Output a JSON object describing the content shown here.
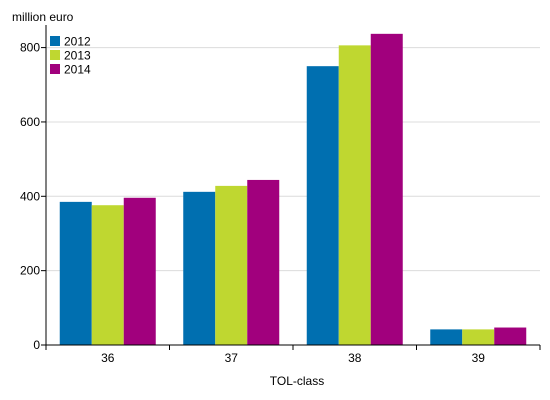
{
  "chart_data": {
    "type": "bar",
    "title": "",
    "ylabel": "million euro",
    "xlabel": "TOL-class",
    "categories": [
      "36",
      "37",
      "38",
      "39"
    ],
    "series": [
      {
        "name": "2012",
        "color": "#006fb0",
        "values": [
          385,
          412,
          750,
          42
        ]
      },
      {
        "name": "2013",
        "color": "#bfd730",
        "values": [
          376,
          428,
          806,
          42
        ]
      },
      {
        "name": "2014",
        "color": "#a1007d",
        "values": [
          396,
          444,
          837,
          47
        ]
      }
    ],
    "ylim": [
      0,
      850
    ],
    "yticks": [
      0,
      200,
      400,
      600,
      800
    ],
    "grid": true,
    "legend_position": "top-left"
  }
}
